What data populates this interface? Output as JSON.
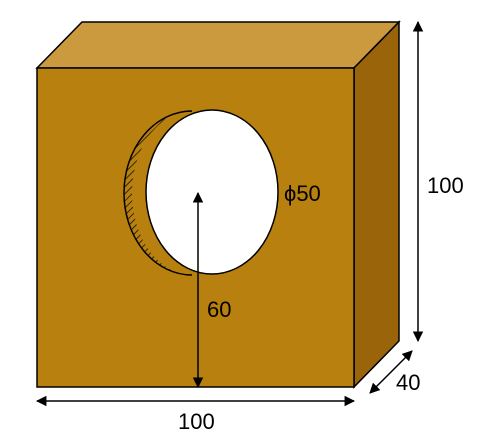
{
  "colors": {
    "front_face": "#B8800F",
    "top_face": "#CC9A3E",
    "side_face": "#9A640B",
    "hole_fill": "#FFFFFF",
    "outline": "#000000",
    "dimension_lines": "#000000"
  },
  "labels": {
    "hole_diameter": "ϕ50",
    "hole_height": "60",
    "height": "100",
    "width": "100",
    "depth": "40"
  }
}
